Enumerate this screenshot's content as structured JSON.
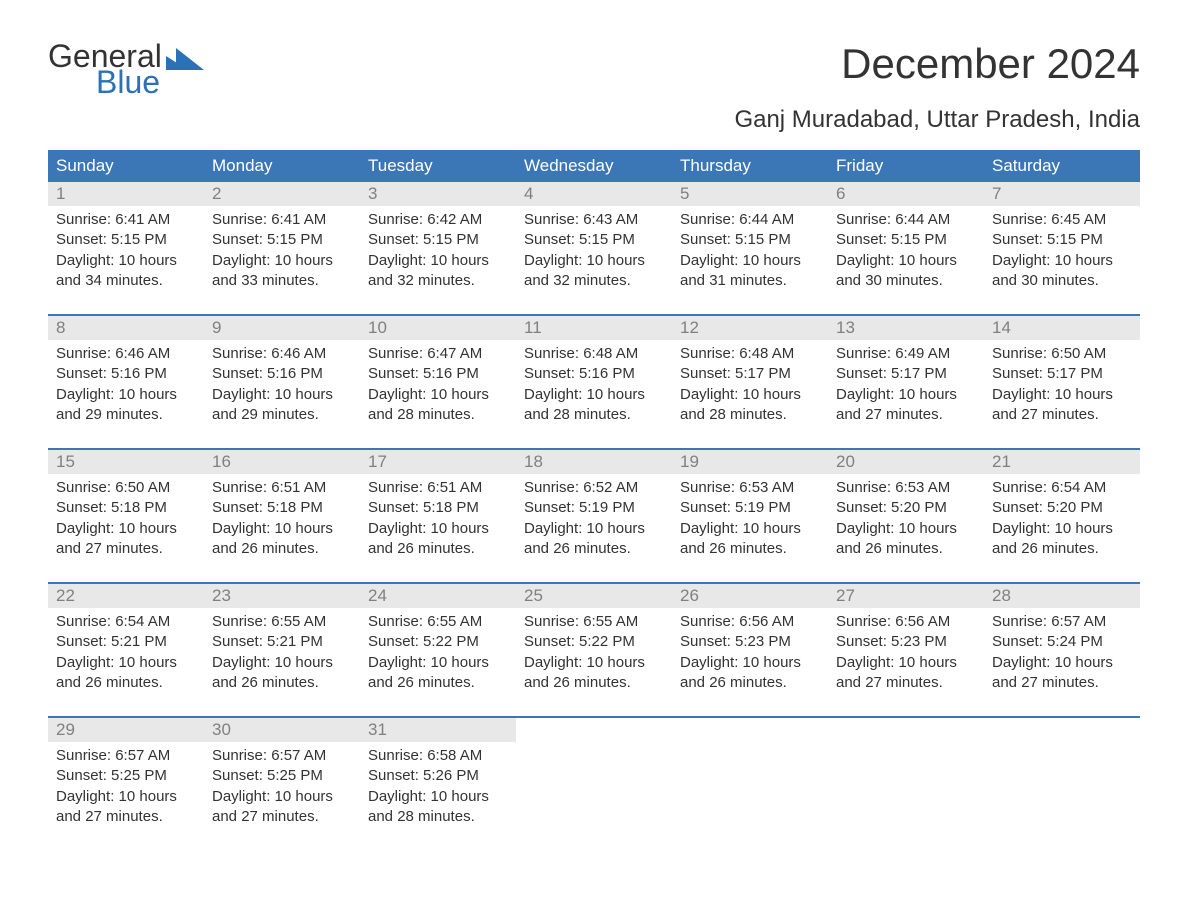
{
  "logo": {
    "general": "General",
    "blue": "Blue"
  },
  "title": "December 2024",
  "subtitle": "Ganj Muradabad, Uttar Pradesh, India",
  "colors": {
    "header_bg": "#3b77b7",
    "header_text": "#ffffff",
    "date_bg": "#e8e8e8",
    "date_text": "#808080",
    "body_text": "#333333",
    "logo_blue": "#2a71b8",
    "row_border": "#3b77b7",
    "background": "#ffffff"
  },
  "fonts": {
    "title_size": 42,
    "subtitle_size": 24,
    "header_size": 17,
    "date_size": 17,
    "body_size": 15,
    "logo_size": 32
  },
  "day_headers": [
    "Sunday",
    "Monday",
    "Tuesday",
    "Wednesday",
    "Thursday",
    "Friday",
    "Saturday"
  ],
  "weeks": [
    [
      {
        "date": "1",
        "sunrise": "Sunrise: 6:41 AM",
        "sunset": "Sunset: 5:15 PM",
        "daylight1": "Daylight: 10 hours",
        "daylight2": "and 34 minutes."
      },
      {
        "date": "2",
        "sunrise": "Sunrise: 6:41 AM",
        "sunset": "Sunset: 5:15 PM",
        "daylight1": "Daylight: 10 hours",
        "daylight2": "and 33 minutes."
      },
      {
        "date": "3",
        "sunrise": "Sunrise: 6:42 AM",
        "sunset": "Sunset: 5:15 PM",
        "daylight1": "Daylight: 10 hours",
        "daylight2": "and 32 minutes."
      },
      {
        "date": "4",
        "sunrise": "Sunrise: 6:43 AM",
        "sunset": "Sunset: 5:15 PM",
        "daylight1": "Daylight: 10 hours",
        "daylight2": "and 32 minutes."
      },
      {
        "date": "5",
        "sunrise": "Sunrise: 6:44 AM",
        "sunset": "Sunset: 5:15 PM",
        "daylight1": "Daylight: 10 hours",
        "daylight2": "and 31 minutes."
      },
      {
        "date": "6",
        "sunrise": "Sunrise: 6:44 AM",
        "sunset": "Sunset: 5:15 PM",
        "daylight1": "Daylight: 10 hours",
        "daylight2": "and 30 minutes."
      },
      {
        "date": "7",
        "sunrise": "Sunrise: 6:45 AM",
        "sunset": "Sunset: 5:15 PM",
        "daylight1": "Daylight: 10 hours",
        "daylight2": "and 30 minutes."
      }
    ],
    [
      {
        "date": "8",
        "sunrise": "Sunrise: 6:46 AM",
        "sunset": "Sunset: 5:16 PM",
        "daylight1": "Daylight: 10 hours",
        "daylight2": "and 29 minutes."
      },
      {
        "date": "9",
        "sunrise": "Sunrise: 6:46 AM",
        "sunset": "Sunset: 5:16 PM",
        "daylight1": "Daylight: 10 hours",
        "daylight2": "and 29 minutes."
      },
      {
        "date": "10",
        "sunrise": "Sunrise: 6:47 AM",
        "sunset": "Sunset: 5:16 PM",
        "daylight1": "Daylight: 10 hours",
        "daylight2": "and 28 minutes."
      },
      {
        "date": "11",
        "sunrise": "Sunrise: 6:48 AM",
        "sunset": "Sunset: 5:16 PM",
        "daylight1": "Daylight: 10 hours",
        "daylight2": "and 28 minutes."
      },
      {
        "date": "12",
        "sunrise": "Sunrise: 6:48 AM",
        "sunset": "Sunset: 5:17 PM",
        "daylight1": "Daylight: 10 hours",
        "daylight2": "and 28 minutes."
      },
      {
        "date": "13",
        "sunrise": "Sunrise: 6:49 AM",
        "sunset": "Sunset: 5:17 PM",
        "daylight1": "Daylight: 10 hours",
        "daylight2": "and 27 minutes."
      },
      {
        "date": "14",
        "sunrise": "Sunrise: 6:50 AM",
        "sunset": "Sunset: 5:17 PM",
        "daylight1": "Daylight: 10 hours",
        "daylight2": "and 27 minutes."
      }
    ],
    [
      {
        "date": "15",
        "sunrise": "Sunrise: 6:50 AM",
        "sunset": "Sunset: 5:18 PM",
        "daylight1": "Daylight: 10 hours",
        "daylight2": "and 27 minutes."
      },
      {
        "date": "16",
        "sunrise": "Sunrise: 6:51 AM",
        "sunset": "Sunset: 5:18 PM",
        "daylight1": "Daylight: 10 hours",
        "daylight2": "and 26 minutes."
      },
      {
        "date": "17",
        "sunrise": "Sunrise: 6:51 AM",
        "sunset": "Sunset: 5:18 PM",
        "daylight1": "Daylight: 10 hours",
        "daylight2": "and 26 minutes."
      },
      {
        "date": "18",
        "sunrise": "Sunrise: 6:52 AM",
        "sunset": "Sunset: 5:19 PM",
        "daylight1": "Daylight: 10 hours",
        "daylight2": "and 26 minutes."
      },
      {
        "date": "19",
        "sunrise": "Sunrise: 6:53 AM",
        "sunset": "Sunset: 5:19 PM",
        "daylight1": "Daylight: 10 hours",
        "daylight2": "and 26 minutes."
      },
      {
        "date": "20",
        "sunrise": "Sunrise: 6:53 AM",
        "sunset": "Sunset: 5:20 PM",
        "daylight1": "Daylight: 10 hours",
        "daylight2": "and 26 minutes."
      },
      {
        "date": "21",
        "sunrise": "Sunrise: 6:54 AM",
        "sunset": "Sunset: 5:20 PM",
        "daylight1": "Daylight: 10 hours",
        "daylight2": "and 26 minutes."
      }
    ],
    [
      {
        "date": "22",
        "sunrise": "Sunrise: 6:54 AM",
        "sunset": "Sunset: 5:21 PM",
        "daylight1": "Daylight: 10 hours",
        "daylight2": "and 26 minutes."
      },
      {
        "date": "23",
        "sunrise": "Sunrise: 6:55 AM",
        "sunset": "Sunset: 5:21 PM",
        "daylight1": "Daylight: 10 hours",
        "daylight2": "and 26 minutes."
      },
      {
        "date": "24",
        "sunrise": "Sunrise: 6:55 AM",
        "sunset": "Sunset: 5:22 PM",
        "daylight1": "Daylight: 10 hours",
        "daylight2": "and 26 minutes."
      },
      {
        "date": "25",
        "sunrise": "Sunrise: 6:55 AM",
        "sunset": "Sunset: 5:22 PM",
        "daylight1": "Daylight: 10 hours",
        "daylight2": "and 26 minutes."
      },
      {
        "date": "26",
        "sunrise": "Sunrise: 6:56 AM",
        "sunset": "Sunset: 5:23 PM",
        "daylight1": "Daylight: 10 hours",
        "daylight2": "and 26 minutes."
      },
      {
        "date": "27",
        "sunrise": "Sunrise: 6:56 AM",
        "sunset": "Sunset: 5:23 PM",
        "daylight1": "Daylight: 10 hours",
        "daylight2": "and 27 minutes."
      },
      {
        "date": "28",
        "sunrise": "Sunrise: 6:57 AM",
        "sunset": "Sunset: 5:24 PM",
        "daylight1": "Daylight: 10 hours",
        "daylight2": "and 27 minutes."
      }
    ],
    [
      {
        "date": "29",
        "sunrise": "Sunrise: 6:57 AM",
        "sunset": "Sunset: 5:25 PM",
        "daylight1": "Daylight: 10 hours",
        "daylight2": "and 27 minutes."
      },
      {
        "date": "30",
        "sunrise": "Sunrise: 6:57 AM",
        "sunset": "Sunset: 5:25 PM",
        "daylight1": "Daylight: 10 hours",
        "daylight2": "and 27 minutes."
      },
      {
        "date": "31",
        "sunrise": "Sunrise: 6:58 AM",
        "sunset": "Sunset: 5:26 PM",
        "daylight1": "Daylight: 10 hours",
        "daylight2": "and 28 minutes."
      },
      null,
      null,
      null,
      null
    ]
  ]
}
